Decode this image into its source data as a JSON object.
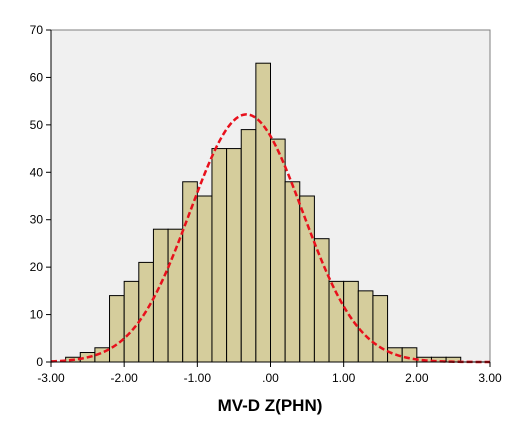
{
  "chart_data": {
    "type": "bar",
    "title": "",
    "xlabel": "MV-D Z(PHN)",
    "ylabel": "",
    "xlim": [
      -3.0,
      3.0
    ],
    "ylim": [
      0,
      70
    ],
    "x_ticks": [
      -3.0,
      -2.0,
      -1.0,
      0.0,
      1.0,
      2.0,
      3.0
    ],
    "x_tick_labels": [
      "-3.00",
      "-2.00",
      "-1.00",
      ".00",
      "1.00",
      "2.00",
      "3.00"
    ],
    "y_ticks": [
      0,
      10,
      20,
      30,
      40,
      50,
      60,
      70
    ],
    "y_tick_labels": [
      "0",
      "10",
      "20",
      "30",
      "40",
      "50",
      "60",
      "70"
    ],
    "grid": false,
    "bin_width": 0.2,
    "bins": [
      {
        "x0": -2.8,
        "x1": -2.6,
        "count": 1
      },
      {
        "x0": -2.6,
        "x1": -2.4,
        "count": 2
      },
      {
        "x0": -2.4,
        "x1": -2.2,
        "count": 3
      },
      {
        "x0": -2.2,
        "x1": -2.0,
        "count": 14
      },
      {
        "x0": -2.0,
        "x1": -1.8,
        "count": 17
      },
      {
        "x0": -1.8,
        "x1": -1.6,
        "count": 21
      },
      {
        "x0": -1.6,
        "x1": -1.4,
        "count": 28
      },
      {
        "x0": -1.4,
        "x1": -1.2,
        "count": 28
      },
      {
        "x0": -1.2,
        "x1": -1.0,
        "count": 38
      },
      {
        "x0": -1.0,
        "x1": -0.8,
        "count": 35
      },
      {
        "x0": -0.8,
        "x1": -0.6,
        "count": 45
      },
      {
        "x0": -0.6,
        "x1": -0.4,
        "count": 45
      },
      {
        "x0": -0.4,
        "x1": -0.2,
        "count": 49
      },
      {
        "x0": -0.2,
        "x1": 0.0,
        "count": 63
      },
      {
        "x0": 0.0,
        "x1": 0.2,
        "count": 47
      },
      {
        "x0": 0.2,
        "x1": 0.4,
        "count": 38
      },
      {
        "x0": 0.4,
        "x1": 0.6,
        "count": 35
      },
      {
        "x0": 0.6,
        "x1": 0.8,
        "count": 26
      },
      {
        "x0": 0.8,
        "x1": 1.0,
        "count": 17
      },
      {
        "x0": 1.0,
        "x1": 1.2,
        "count": 17
      },
      {
        "x0": 1.2,
        "x1": 1.4,
        "count": 15
      },
      {
        "x0": 1.4,
        "x1": 1.6,
        "count": 14
      },
      {
        "x0": 1.6,
        "x1": 1.8,
        "count": 3
      },
      {
        "x0": 1.8,
        "x1": 2.0,
        "count": 3
      },
      {
        "x0": 2.0,
        "x1": 2.2,
        "count": 1
      },
      {
        "x0": 2.2,
        "x1": 2.4,
        "count": 1
      },
      {
        "x0": 2.4,
        "x1": 2.6,
        "count": 1
      }
    ],
    "normal_curve": {
      "mean": -0.33,
      "sd": 0.77,
      "peak": 52.2,
      "color": "#e8101c",
      "style": "dashed"
    },
    "colors": {
      "bar_fill": "#d5cd9c",
      "bar_stroke": "#000000",
      "plot_bg": "#f0f0f0"
    }
  }
}
